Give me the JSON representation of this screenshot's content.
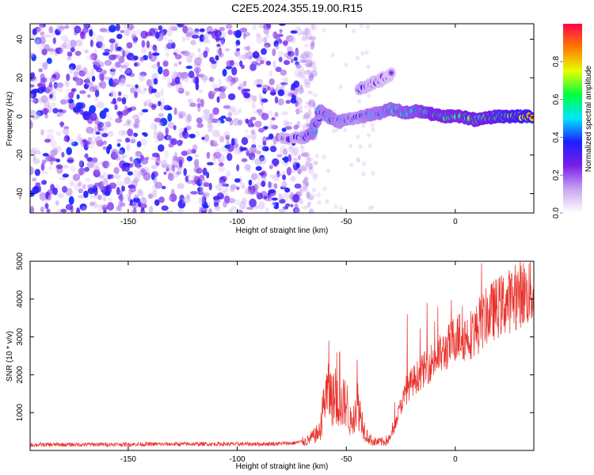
{
  "title": "C2E5.2024.355.19.00.R15",
  "chart_data": [
    {
      "type": "heatmap",
      "xlabel": "Height of straight line (km)",
      "ylabel": "Frequency (Hz)",
      "xlim": [
        -195,
        36
      ],
      "ylim": [
        -50,
        48
      ],
      "xticks": [
        -150,
        -100,
        -50,
        0
      ],
      "xtick_labels": [
        "-150",
        "-100",
        "-50",
        "0"
      ],
      "yticks": [
        -40,
        -20,
        0,
        20,
        40
      ],
      "ytick_labels": [
        "-40",
        "-20",
        "0",
        "20",
        "40"
      ],
      "colorbar": {
        "label": "Normalized spectral amplitude",
        "range": [
          0.0,
          1.0
        ],
        "ticks": [
          0.0,
          0.2,
          0.4,
          0.6,
          0.8
        ],
        "tick_labels": [
          "0.0",
          "0.2",
          "0.4",
          "0.6",
          "0.8"
        ],
        "colormap": [
          "#ffffff",
          "#c9a6f2",
          "#7a1ee8",
          "#1e1eff",
          "#00e6ff",
          "#00ff40",
          "#e6ff00",
          "#ff7a00",
          "#ff0050"
        ]
      },
      "noise_region_x": [
        -195,
        -72
      ],
      "signal_track": {
        "x": [
          -80,
          -70,
          -66,
          -62,
          -58,
          -54,
          -50,
          -46,
          -42,
          -38,
          -34,
          -30,
          -26,
          -22,
          -18,
          -14,
          -10,
          -6,
          -2,
          2,
          6,
          10,
          14,
          18,
          22,
          26,
          30,
          35
        ],
        "frequency": [
          -11,
          -11,
          -9,
          3,
          0,
          -3,
          -2,
          -1,
          0,
          1,
          2,
          4,
          3,
          2,
          3,
          2,
          1,
          0,
          0,
          0,
          -1,
          -2,
          -1,
          0,
          0,
          0,
          0,
          0
        ],
        "amplitude": [
          0.3,
          0.35,
          0.5,
          0.45,
          0.5,
          0.45,
          0.45,
          0.4,
          0.45,
          0.5,
          0.5,
          0.55,
          0.55,
          0.6,
          0.6,
          0.65,
          0.7,
          0.7,
          0.7,
          0.7,
          0.75,
          0.7,
          0.75,
          0.8,
          0.85,
          0.9,
          0.95,
          1.0
        ]
      },
      "branch_track": {
        "x": [
          -44,
          -40,
          -36,
          -32,
          -29
        ],
        "frequency": [
          14,
          16,
          18,
          20,
          22
        ],
        "amplitude": [
          0.35,
          0.3,
          0.28,
          0.25,
          0.22
        ]
      }
    },
    {
      "type": "line",
      "xlabel": "Height of straight line (km)",
      "ylabel": "SNR (10 * v/v)",
      "xlim": [
        -195,
        36
      ],
      "ylim": [
        0,
        5000
      ],
      "xticks": [
        -150,
        -100,
        -50,
        0
      ],
      "xtick_labels": [
        "-150",
        "-100",
        "-50",
        "0"
      ],
      "yticks": [
        1000,
        2000,
        3000,
        4000,
        5000
      ],
      "ytick_labels": [
        "1000",
        "2000",
        "3000",
        "4000",
        "5000"
      ],
      "line_color": "#e8302a",
      "envelope_x": [
        -195,
        -160,
        -120,
        -90,
        -75,
        -68,
        -62,
        -60,
        -58,
        -55,
        -52,
        -50,
        -48,
        -45,
        -42,
        -40,
        -38,
        -36,
        -33,
        -30,
        -28,
        -25,
        -22,
        -20,
        -15,
        -10,
        -5,
        0,
        5,
        10,
        15,
        20,
        25,
        30,
        36
      ],
      "envelope_y": [
        150,
        160,
        170,
        170,
        190,
        250,
        500,
        1400,
        1500,
        1300,
        1200,
        1300,
        700,
        1300,
        600,
        350,
        250,
        220,
        230,
        300,
        600,
        1200,
        1600,
        1800,
        2100,
        2400,
        2600,
        3000,
        3000,
        3200,
        3600,
        3800,
        3950,
        4150,
        4200
      ],
      "spikes": [
        {
          "x": -58,
          "y": 2900
        },
        {
          "x": -53,
          "y": 2600
        },
        {
          "x": -45,
          "y": 2400
        },
        {
          "x": -22,
          "y": 3600
        },
        {
          "x": -13,
          "y": 3900
        },
        {
          "x": -8,
          "y": 3800
        },
        {
          "x": 2,
          "y": 3600
        },
        {
          "x": 12,
          "y": 4950
        },
        {
          "x": 18,
          "y": 4300
        },
        {
          "x": 33,
          "y": 4500
        }
      ]
    }
  ]
}
